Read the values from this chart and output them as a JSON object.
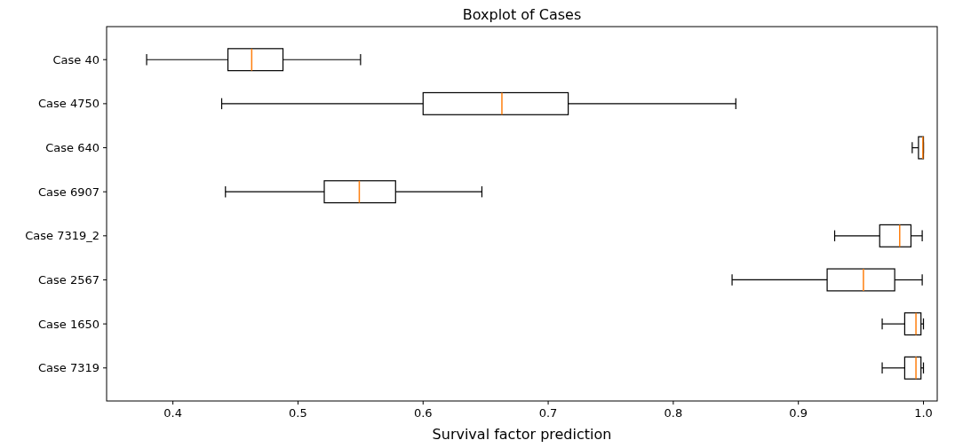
{
  "chart_data": {
    "type": "box",
    "orientation": "horizontal",
    "title": "Boxplot of Cases",
    "xlabel": "Survival factor prediction",
    "categories": [
      "Case 40",
      "Case 4750",
      "Case 640",
      "Case 6907",
      "Case 7319_2",
      "Case 2567",
      "Case 1650",
      "Case 7319"
    ],
    "boxes": [
      {
        "low": 0.379,
        "q1": 0.444,
        "median": 0.463,
        "q3": 0.488,
        "high": 0.55
      },
      {
        "low": 0.439,
        "q1": 0.6,
        "median": 0.663,
        "q3": 0.716,
        "high": 0.85
      },
      {
        "low": 0.991,
        "q1": 0.996,
        "median": 0.9995,
        "q3": 1.0,
        "high": 1.0
      },
      {
        "low": 0.442,
        "q1": 0.521,
        "median": 0.549,
        "q3": 0.578,
        "high": 0.647
      },
      {
        "low": 0.929,
        "q1": 0.965,
        "median": 0.981,
        "q3": 0.99,
        "high": 0.999
      },
      {
        "low": 0.847,
        "q1": 0.923,
        "median": 0.952,
        "q3": 0.977,
        "high": 0.999
      },
      {
        "low": 0.967,
        "q1": 0.985,
        "median": 0.994,
        "q3": 0.998,
        "high": 1.0
      },
      {
        "low": 0.967,
        "q1": 0.985,
        "median": 0.994,
        "q3": 0.998,
        "high": 1.0
      }
    ],
    "color": "#000000",
    "xlim": [
      0.347,
      1.011
    ],
    "xticks": [
      {
        "value": 0.4,
        "label": "0.4"
      },
      {
        "value": 0.5,
        "label": "0.5"
      },
      {
        "value": 0.6,
        "label": "0.6"
      },
      {
        "value": 0.7,
        "label": "0.7"
      },
      {
        "value": 0.8,
        "label": "0.8"
      },
      {
        "value": 0.9,
        "label": "0.9"
      },
      {
        "value": 1.0,
        "label": "1.0"
      }
    ]
  }
}
